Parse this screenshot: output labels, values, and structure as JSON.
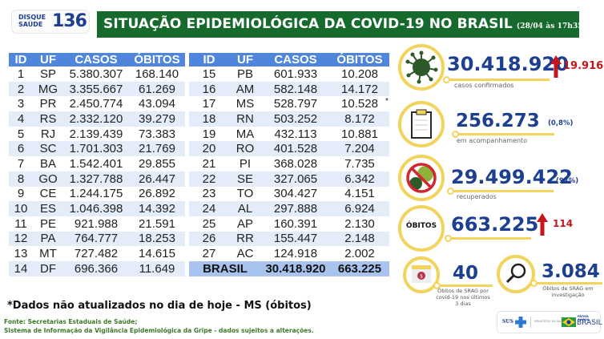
{
  "logo": {
    "line1": "DISQUE",
    "line2": "SAÚDE",
    "number": "136"
  },
  "header": {
    "title": "SITUAÇÃO EPIDEMIOLÓGICA DA COVID-19 NO BRASIL",
    "timestamp": "(28/04 às 17h35)"
  },
  "table": {
    "columns": [
      "ID",
      "UF",
      "CASOS",
      "ÓBITOS"
    ],
    "left_rows": [
      [
        "1",
        "SP",
        "5.380.307",
        "168.140"
      ],
      [
        "2",
        "MG",
        "3.355.667",
        "61.269"
      ],
      [
        "3",
        "PR",
        "2.450.774",
        "43.094"
      ],
      [
        "4",
        "RS",
        "2.332.120",
        "39.279"
      ],
      [
        "5",
        "RJ",
        "2.139.439",
        "73.383"
      ],
      [
        "6",
        "SC",
        "1.701.303",
        "21.769"
      ],
      [
        "7",
        "BA",
        "1.542.401",
        "29.855"
      ],
      [
        "8",
        "GO",
        "1.327.788",
        "26.447"
      ],
      [
        "9",
        "CE",
        "1.244.175",
        "26.892"
      ],
      [
        "10",
        "ES",
        "1.046.398",
        "14.392"
      ],
      [
        "11",
        "PE",
        "921.988",
        "21.591"
      ],
      [
        "12",
        "PA",
        "764.777",
        "18.253"
      ],
      [
        "13",
        "MT",
        "727.482",
        "14.615"
      ],
      [
        "14",
        "DF",
        "696.366",
        "11.649"
      ]
    ],
    "right_rows": [
      [
        "15",
        "PB",
        "601.933",
        "10.208"
      ],
      [
        "16",
        "AM",
        "582.148",
        "14.172"
      ],
      [
        "17",
        "MS",
        "528.797",
        "10.528"
      ],
      [
        "18",
        "RN",
        "503.252",
        "8.172"
      ],
      [
        "19",
        "MA",
        "432.113",
        "10.881"
      ],
      [
        "20",
        "RO",
        "401.528",
        "7.204"
      ],
      [
        "21",
        "PI",
        "368.028",
        "7.735"
      ],
      [
        "22",
        "SE",
        "327.065",
        "6.342"
      ],
      [
        "23",
        "TO",
        "304.427",
        "4.151"
      ],
      [
        "24",
        "AL",
        "297.888",
        "6.924"
      ],
      [
        "25",
        "AP",
        "160.391",
        "2.130"
      ],
      [
        "26",
        "RR",
        "155.447",
        "2.148"
      ],
      [
        "27",
        "AC",
        "124.918",
        "2.002"
      ]
    ],
    "asterisk": "*",
    "total": {
      "label": "BRASIL",
      "casos": "30.418.920",
      "obitos": "663.225"
    }
  },
  "stats": {
    "confirmed": {
      "value": "30.418.920",
      "label": "casos confirmados",
      "delta": "19.916",
      "icon": "virus-icon"
    },
    "monitoring": {
      "value": "256.273",
      "label": "em acompanhamento",
      "pct": "(0,8%)",
      "icon": "clipboard-icon"
    },
    "recovered": {
      "value": "29.499.422",
      "label": "recuperados",
      "pct": "(97%)",
      "icon": "no-virus-icon"
    },
    "deaths": {
      "badge": "ÓBITOS",
      "value": "663.225",
      "delta": "114"
    },
    "srag_recent": {
      "value": "40",
      "label": [
        "Óbitos de SRAG por",
        "covid-19 nos últimos",
        "3 dias"
      ],
      "icon": "calendar-icon"
    },
    "srag_investigation": {
      "value": "3.084",
      "label": [
        "Óbitos de SRAG em",
        "investigação"
      ],
      "icon": "magnifier-icon"
    }
  },
  "footer": {
    "note": "*Dados não atualizados no dia de hoje - MS (óbitos)",
    "source1": "Fonte: Secretarias Estaduais de Saúde;",
    "source2": "Sistema de Informação da Vigilância Epidemiológica da Gripe - dados sujeitos a alterações.",
    "logos": {
      "sus": "SUS",
      "ministry": "MINISTÉRIO DA SAÚDE",
      "gov_top": "PÁTRIA AMADA",
      "gov": "BRASIL"
    }
  },
  "colors": {
    "banner_green": "#166a2c",
    "table_header_blue": "#4f86dc",
    "row_alt": "#e5ecf9",
    "total_row": "#a8c4ee",
    "number_blue": "#1d3f8f",
    "accent_yellow": "#f2d35c",
    "delta_red": "#c4161c"
  }
}
